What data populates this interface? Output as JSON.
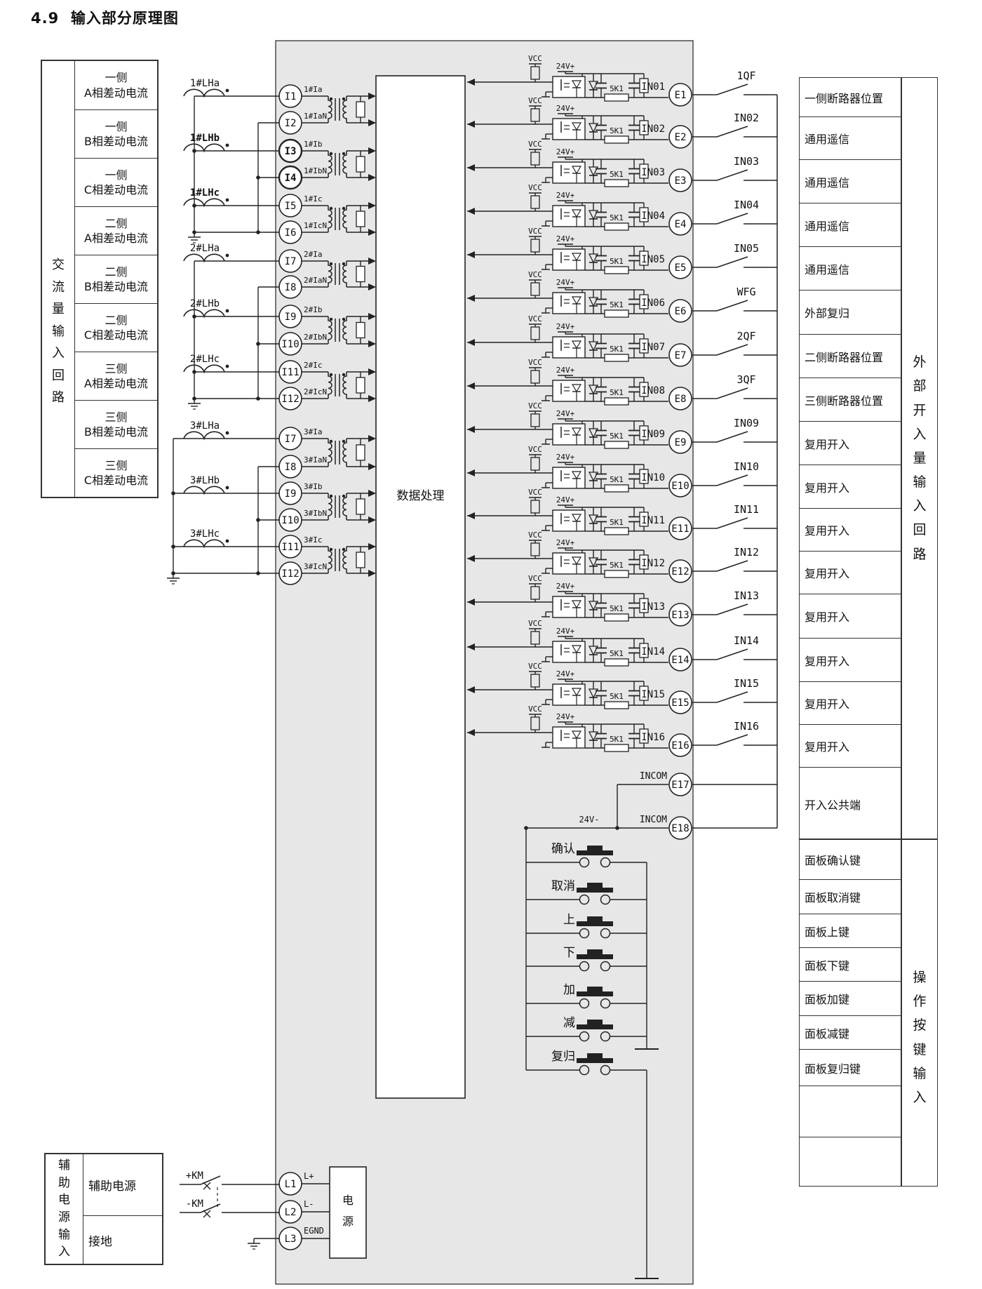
{
  "title": "4.9  输入部分原理图",
  "colors": {
    "panel_gray": "#e7e7e7",
    "line": "#222222",
    "table_border": "#333333"
  },
  "left_table": {
    "side_label": "交流量输入回路",
    "rows": [
      {
        "l1": "一侧",
        "l2": "A相差动电流"
      },
      {
        "l1": "一侧",
        "l2": "B相差动电流"
      },
      {
        "l1": "一侧",
        "l2": "C相差动电流"
      },
      {
        "l1": "二侧",
        "l2": "A相差动电流"
      },
      {
        "l1": "二侧",
        "l2": "B相差动电流"
      },
      {
        "l1": "二侧",
        "l2": "C相差动电流"
      },
      {
        "l1": "三侧",
        "l2": "A相差动电流"
      },
      {
        "l1": "三侧",
        "l2": "B相差动电流"
      },
      {
        "l1": "三侧",
        "l2": "C相差动电流"
      }
    ]
  },
  "ct_groups": [
    {
      "coils": [
        {
          "label": "1#LHa",
          "bold": false
        },
        {
          "label": "1#LHb",
          "bold": true
        },
        {
          "label": "1#LHc",
          "bold": true
        }
      ],
      "terminals": [
        {
          "id": "I1",
          "tag": "1#Ia",
          "bold": false
        },
        {
          "id": "I2",
          "tag": "1#IaN",
          "bold": false
        },
        {
          "id": "I3",
          "tag": "1#Ib",
          "bold": true
        },
        {
          "id": "I4",
          "tag": "1#IbN",
          "bold": true
        },
        {
          "id": "I5",
          "tag": "1#Ic",
          "bold": false
        },
        {
          "id": "I6",
          "tag": "1#IcN",
          "bold": false
        }
      ]
    },
    {
      "coils": [
        {
          "label": "2#LHa",
          "bold": false
        },
        {
          "label": "2#LHb",
          "bold": false
        },
        {
          "label": "2#LHc",
          "bold": false
        }
      ],
      "terminals": [
        {
          "id": "I7",
          "tag": "2#Ia",
          "bold": false
        },
        {
          "id": "I8",
          "tag": "2#IaN",
          "bold": false
        },
        {
          "id": "I9",
          "tag": "2#Ib",
          "bold": false
        },
        {
          "id": "I10",
          "tag": "2#IbN",
          "bold": false
        },
        {
          "id": "I11",
          "tag": "2#Ic",
          "bold": false
        },
        {
          "id": "I12",
          "tag": "2#IcN",
          "bold": false
        }
      ]
    },
    {
      "coils": [
        {
          "label": "3#LHa",
          "bold": false
        },
        {
          "label": "3#LHb",
          "bold": false
        },
        {
          "label": "3#LHc",
          "bold": false
        }
      ],
      "terminals": [
        {
          "id": "I7",
          "tag": "3#Ia",
          "bold": false
        },
        {
          "id": "I8",
          "tag": "3#IaN",
          "bold": false
        },
        {
          "id": "I9",
          "tag": "3#Ib",
          "bold": false
        },
        {
          "id": "I10",
          "tag": "3#IbN",
          "bold": false
        },
        {
          "id": "I11",
          "tag": "3#Ic",
          "bold": false
        },
        {
          "id": "I12",
          "tag": "3#IcN",
          "bold": false
        }
      ]
    }
  ],
  "processing_label": "数据处理",
  "opto": {
    "vcc": "VCC",
    "v24": "24V+",
    "res": "5K1",
    "rows": [
      {
        "in": "IN01",
        "e": "E1",
        "sw": "1QF",
        "desc": "一侧断路器位置"
      },
      {
        "in": "IN02",
        "e": "E2",
        "sw": "IN02",
        "desc": "通用遥信"
      },
      {
        "in": "IN03",
        "e": "E3",
        "sw": "IN03",
        "desc": "通用遥信"
      },
      {
        "in": "IN04",
        "e": "E4",
        "sw": "IN04",
        "desc": "通用遥信"
      },
      {
        "in": "IN05",
        "e": "E5",
        "sw": "IN05",
        "desc": "通用遥信"
      },
      {
        "in": "IN06",
        "e": "E6",
        "sw": "WFG",
        "desc": "外部复归"
      },
      {
        "in": "IN07",
        "e": "E7",
        "sw": "2QF",
        "desc": "二侧断路器位置"
      },
      {
        "in": "IN08",
        "e": "E8",
        "sw": "3QF",
        "desc": "三侧断路器位置"
      },
      {
        "in": "IN09",
        "e": "E9",
        "sw": "IN09",
        "desc": "复用开入"
      },
      {
        "in": "IN10",
        "e": "E10",
        "sw": "IN10",
        "desc": "复用开入"
      },
      {
        "in": "IN11",
        "e": "E11",
        "sw": "IN11",
        "desc": "复用开入"
      },
      {
        "in": "IN12",
        "e": "E12",
        "sw": "IN12",
        "desc": "复用开入"
      },
      {
        "in": "IN13",
        "e": "E13",
        "sw": "IN13",
        "desc": "复用开入"
      },
      {
        "in": "IN14",
        "e": "E14",
        "sw": "IN14",
        "desc": "复用开入"
      },
      {
        "in": "IN15",
        "e": "E15",
        "sw": "IN15",
        "desc": "复用开入"
      },
      {
        "in": "IN16",
        "e": "E16",
        "sw": "IN16",
        "desc": "复用开入"
      }
    ]
  },
  "common": {
    "v24neg": "24V-",
    "rows": [
      {
        "tag": "INCOM",
        "e": "E17"
      },
      {
        "tag": "INCOM",
        "e": "E18"
      }
    ],
    "desc": "开入公共端"
  },
  "right_panel": {
    "upper_side_label": "外部开入量输入回路",
    "lower_side_label": "操作按键输入"
  },
  "buttons": {
    "rows": [
      {
        "label": "确认",
        "desc": "面板确认键"
      },
      {
        "label": "取消",
        "desc": "面板取消键"
      },
      {
        "label": "上",
        "desc": "面板上键"
      },
      {
        "label": "下",
        "desc": "面板下键"
      },
      {
        "label": "加",
        "desc": "面板加键"
      },
      {
        "label": "减",
        "desc": "面板减键"
      },
      {
        "label": "复归",
        "desc": "面板复归键"
      }
    ]
  },
  "power": {
    "side_label": "辅助电源输入",
    "rows": [
      "辅助电源",
      "接地"
    ],
    "switches": [
      "+KM",
      "-KM"
    ],
    "terminals": [
      {
        "id": "L1",
        "tag": "L+"
      },
      {
        "id": "L2",
        "tag": "L-"
      },
      {
        "id": "L3",
        "tag": "EGND"
      }
    ],
    "box_label": "电源"
  }
}
